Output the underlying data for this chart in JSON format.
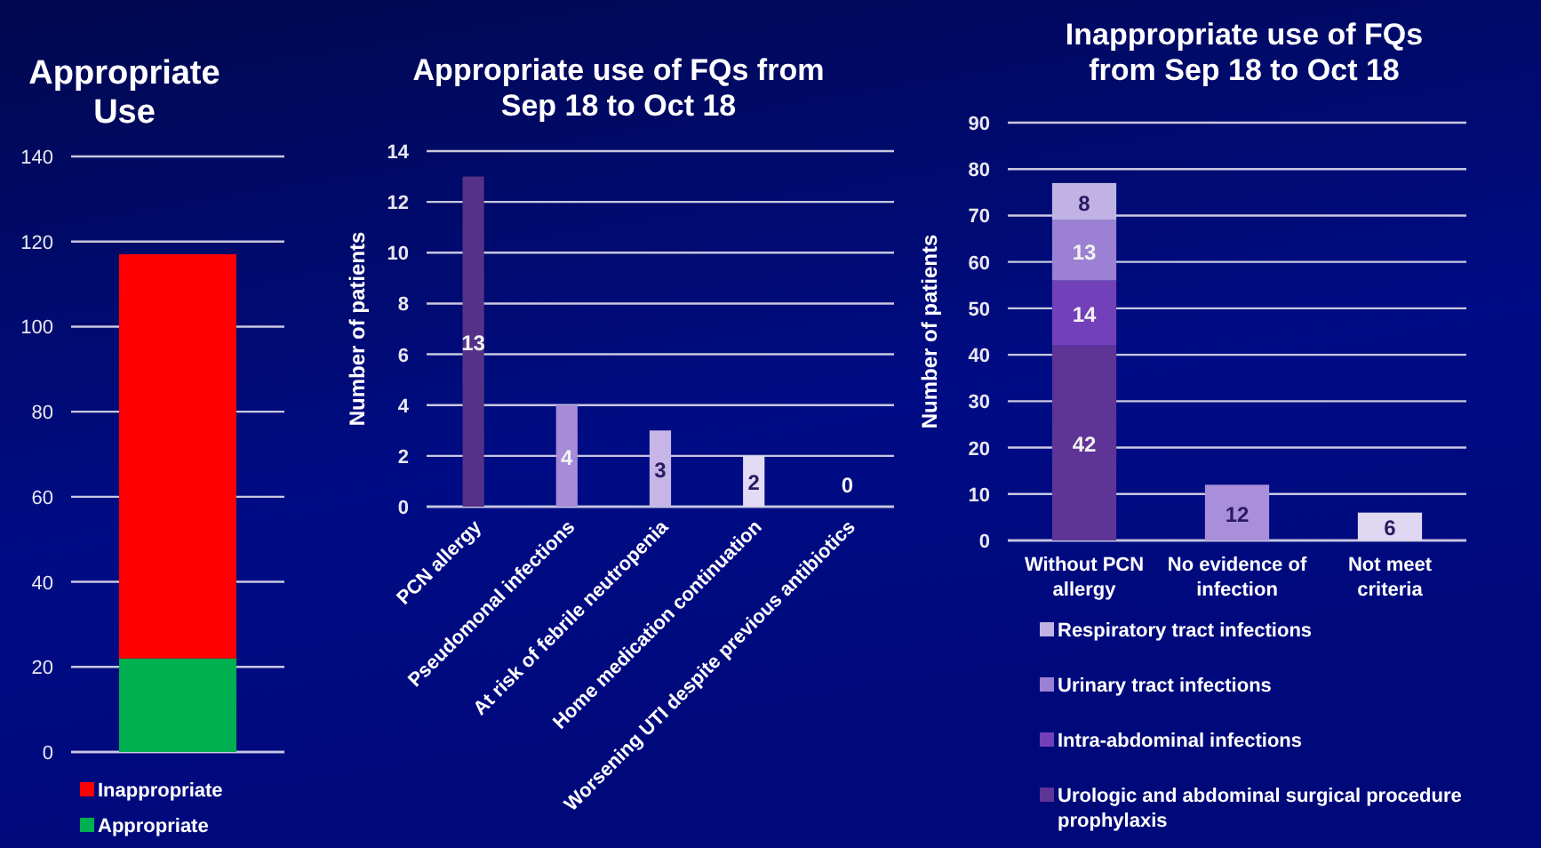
{
  "chart_data": [
    {
      "type": "bar",
      "title": "Appropriate Use",
      "categories": [
        null
      ],
      "stacked": true,
      "series": [
        {
          "name": "Appropriate",
          "color": "#00b050",
          "values": [
            22
          ]
        },
        {
          "name": "Inappropriate",
          "color": "#ff0000",
          "values": [
            95
          ]
        }
      ],
      "ylim": [
        0,
        140
      ],
      "yticks": [
        0,
        20,
        40,
        60,
        80,
        100,
        120,
        140
      ],
      "grid": "y",
      "legend": "bottom"
    },
    {
      "type": "bar",
      "title": "Appropriate use of FQs from Sep 18 to Oct 18",
      "ylabel": "Number of patients",
      "categories": [
        "PCN allergy",
        "Pseudomonal infections",
        "At risk of febrile neutropenia",
        "Home medication continuation",
        "Worsening UTI despite previous antibiotics"
      ],
      "values": [
        13,
        4,
        3,
        2,
        0
      ],
      "colors": [
        "#553287",
        "#a58bd8",
        "#c6b6e8",
        "#e2dbf3",
        "#e9e4f7"
      ],
      "ylim": [
        0,
        14
      ],
      "yticks": [
        0,
        2,
        4,
        6,
        8,
        10,
        12,
        14
      ],
      "grid": "y",
      "data_labels": true
    },
    {
      "type": "bar",
      "title": "Inappropriate use of FQs from Sep 18 to Oct 18",
      "ylabel": "Number of patients",
      "categories": [
        "Without PCN allergy",
        "No evidence of infection",
        "Not meet criteria"
      ],
      "stacked": true,
      "series": [
        {
          "name": "Urologic and abdominal surgical procedure prophylaxis",
          "color": "#5e3497",
          "values": [
            42,
            null,
            null
          ]
        },
        {
          "name": "Intra-abdominal infections",
          "color": "#7240b8",
          "values": [
            14,
            null,
            null
          ]
        },
        {
          "name": "Urinary tract infections",
          "color": "#9b80d4",
          "values": [
            13,
            null,
            null
          ]
        },
        {
          "name": "Respiratory tract infections",
          "color": "#c0b3e3",
          "values": [
            8,
            null,
            null
          ]
        },
        {
          "colors": [
            null,
            "#a98fdb",
            "#e0d8f2"
          ],
          "values": [
            null,
            12,
            6
          ]
        }
      ],
      "ylim": [
        0,
        90
      ],
      "yticks": [
        0,
        10,
        20,
        30,
        40,
        50,
        60,
        70,
        80,
        90
      ],
      "grid": "y",
      "data_labels": true,
      "legend": "bottom"
    }
  ]
}
